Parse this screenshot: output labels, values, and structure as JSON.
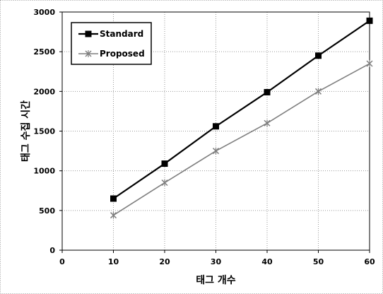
{
  "chart_data": {
    "type": "line",
    "title": "",
    "xlabel": "태그 개수",
    "ylabel": "태그 수집 시간",
    "xlim": [
      0,
      60
    ],
    "ylim": [
      0,
      3000
    ],
    "xticks": [
      0,
      10,
      20,
      30,
      40,
      50,
      60
    ],
    "yticks": [
      0,
      500,
      1000,
      1500,
      2000,
      2500,
      3000
    ],
    "grid": true,
    "legend_position": "top-left",
    "x": [
      10,
      20,
      30,
      40,
      50,
      60
    ],
    "series": [
      {
        "name": "Standard",
        "values": [
          650,
          1090,
          1560,
          1990,
          2450,
          2890
        ],
        "color": "#000000",
        "marker": "square"
      },
      {
        "name": "Proposed",
        "values": [
          440,
          850,
          1250,
          1600,
          2000,
          2350
        ],
        "color": "#7f7f7f",
        "marker": "star"
      }
    ]
  }
}
